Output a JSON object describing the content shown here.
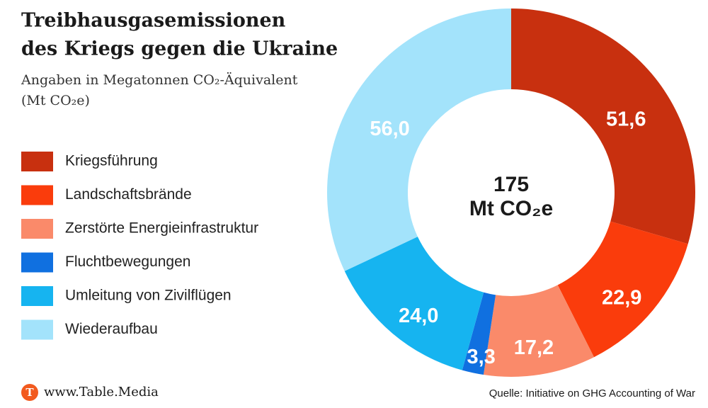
{
  "chart_data": {
    "type": "donut",
    "title": [
      "Treibhausgasemissionen",
      "des Kriegs gegen die Ukraine"
    ],
    "subtitle": [
      "Angaben in Megatonnen CO₂-Äquivalent",
      "(Mt CO₂e)"
    ],
    "categories": [
      "Kriegsführung",
      "Landschaftsbrände",
      "Zerstörte Energieinfrastruktur",
      "Fluchtbewegungen",
      "Umleitung von Zivilflügen",
      "Wiederaufbau"
    ],
    "values": [
      51.6,
      22.9,
      17.2,
      3.3,
      24.0,
      56.0
    ],
    "value_labels": [
      "51,6",
      "22,9",
      "17,2",
      "3,3",
      "24,0",
      "56,0"
    ],
    "colors": [
      "#c8300f",
      "#fa3c0c",
      "#fa8a6a",
      "#1070e0",
      "#16b4f0",
      "#a3e3fb"
    ],
    "center_total": 175,
    "center_unit": "Mt CO₂e",
    "footer": "www.Table.Media",
    "source": "Quelle: Initiative on GHG Accounting of War"
  }
}
